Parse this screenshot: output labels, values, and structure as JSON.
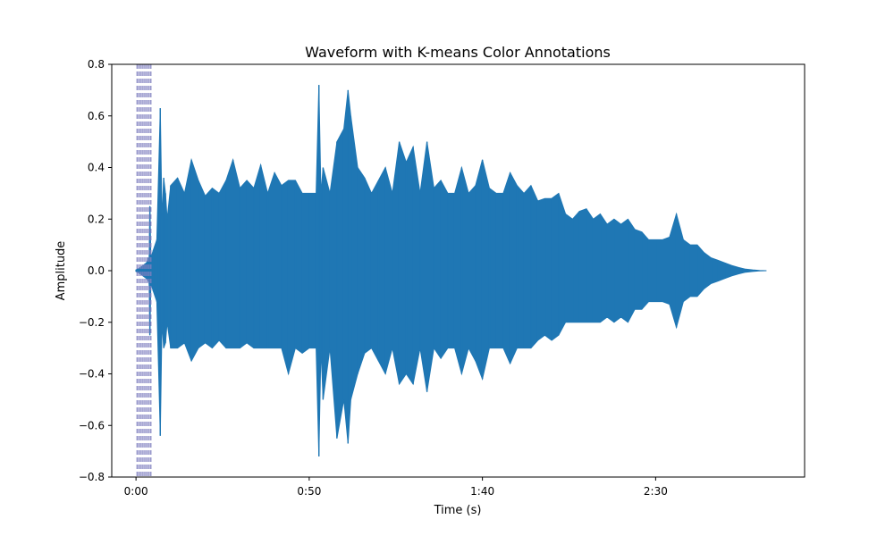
{
  "chart_data": {
    "type": "line",
    "title": "Waveform with K-means Color Annotations",
    "xlabel": "Time (s)",
    "ylabel": "Amplitude",
    "xlim": [
      -7,
      193
    ],
    "ylim": [
      -0.8,
      0.8
    ],
    "xticks": [
      {
        "value": 0,
        "label": "0:00"
      },
      {
        "value": 50,
        "label": "0:50"
      },
      {
        "value": 100,
        "label": "1:40"
      },
      {
        "value": 150,
        "label": "2:30"
      }
    ],
    "yticks": [
      {
        "value": 0.8,
        "label": "0.8"
      },
      {
        "value": 0.6,
        "label": "0.6"
      },
      {
        "value": 0.4,
        "label": "0.4"
      },
      {
        "value": 0.2,
        "label": "0.2"
      },
      {
        "value": 0.0,
        "label": "0.0"
      },
      {
        "value": -0.2,
        "label": "−0.2"
      },
      {
        "value": -0.4,
        "label": "−0.4"
      },
      {
        "value": -0.6,
        "label": "−0.6"
      },
      {
        "value": -0.8,
        "label": "−0.8"
      }
    ],
    "grid": false,
    "series": [
      {
        "color": "#1f77b4",
        "x": [
          0,
          1,
          2,
          3,
          3.6,
          3.8,
          4,
          4.3,
          5,
          6,
          7,
          7.5,
          8.0,
          8.5,
          9,
          10,
          12,
          14,
          16,
          18,
          20,
          22,
          24,
          26,
          28,
          30,
          32,
          34,
          36,
          38,
          40,
          42,
          44,
          46,
          48,
          50,
          52,
          52.8,
          53.4,
          54,
          56,
          58,
          60,
          61.2,
          62,
          64,
          66,
          68,
          70,
          72,
          74,
          76,
          78,
          80,
          82,
          84,
          86,
          88,
          90,
          92,
          94,
          96,
          98,
          100,
          102,
          104,
          106,
          108,
          110,
          112,
          114,
          116,
          118,
          120,
          122,
          124,
          126,
          128,
          130,
          132,
          134,
          136,
          138,
          140,
          142,
          144,
          146,
          148,
          150,
          152,
          154,
          156,
          158,
          160,
          162,
          164,
          166,
          168,
          170,
          172,
          174,
          176,
          178,
          180,
          182
        ],
        "y_max": [
          0.003,
          0.01,
          0.02,
          0.03,
          0.05,
          0.05,
          0.25,
          0.05,
          0.08,
          0.12,
          0.63,
          0.2,
          0.36,
          0.3,
          0.2,
          0.33,
          0.36,
          0.3,
          0.43,
          0.35,
          0.29,
          0.32,
          0.3,
          0.35,
          0.43,
          0.32,
          0.35,
          0.32,
          0.41,
          0.3,
          0.38,
          0.33,
          0.35,
          0.35,
          0.3,
          0.3,
          0.3,
          0.72,
          0.3,
          0.4,
          0.3,
          0.5,
          0.55,
          0.7,
          0.6,
          0.4,
          0.36,
          0.3,
          0.35,
          0.4,
          0.3,
          0.5,
          0.42,
          0.48,
          0.3,
          0.5,
          0.32,
          0.35,
          0.3,
          0.3,
          0.4,
          0.3,
          0.33,
          0.43,
          0.32,
          0.3,
          0.3,
          0.38,
          0.33,
          0.3,
          0.33,
          0.27,
          0.28,
          0.28,
          0.3,
          0.22,
          0.2,
          0.23,
          0.24,
          0.2,
          0.22,
          0.18,
          0.2,
          0.18,
          0.2,
          0.16,
          0.15,
          0.12,
          0.12,
          0.12,
          0.13,
          0.22,
          0.12,
          0.1,
          0.1,
          0.07,
          0.05,
          0.04,
          0.03,
          0.02,
          0.012,
          0.006,
          0.003,
          0.001,
          0.0
        ],
        "y_min": [
          -0.003,
          -0.01,
          -0.02,
          -0.03,
          -0.04,
          -0.05,
          -0.25,
          -0.05,
          -0.08,
          -0.12,
          -0.64,
          -0.2,
          -0.3,
          -0.28,
          -0.2,
          -0.3,
          -0.3,
          -0.28,
          -0.35,
          -0.3,
          -0.28,
          -0.3,
          -0.27,
          -0.3,
          -0.3,
          -0.3,
          -0.28,
          -0.3,
          -0.3,
          -0.3,
          -0.3,
          -0.3,
          -0.4,
          -0.3,
          -0.32,
          -0.3,
          -0.3,
          -0.72,
          -0.3,
          -0.5,
          -0.3,
          -0.65,
          -0.5,
          -0.67,
          -0.5,
          -0.4,
          -0.32,
          -0.3,
          -0.35,
          -0.4,
          -0.3,
          -0.44,
          -0.4,
          -0.44,
          -0.3,
          -0.47,
          -0.3,
          -0.34,
          -0.3,
          -0.3,
          -0.4,
          -0.3,
          -0.35,
          -0.42,
          -0.3,
          -0.3,
          -0.3,
          -0.36,
          -0.3,
          -0.3,
          -0.3,
          -0.27,
          -0.25,
          -0.27,
          -0.25,
          -0.2,
          -0.2,
          -0.2,
          -0.2,
          -0.2,
          -0.2,
          -0.18,
          -0.2,
          -0.18,
          -0.2,
          -0.15,
          -0.15,
          -0.12,
          -0.12,
          -0.12,
          -0.13,
          -0.22,
          -0.12,
          -0.1,
          -0.1,
          -0.07,
          -0.05,
          -0.04,
          -0.03,
          -0.02,
          -0.012,
          -0.006,
          -0.003,
          -0.001,
          0.0
        ]
      }
    ],
    "annotations": {
      "type": "vertical-dashed-lines",
      "color": "#8080c0",
      "x": [
        0.3,
        0.8,
        1.3,
        1.8,
        2.3,
        2.8,
        3.3,
        3.8,
        4.3
      ]
    },
    "spike_peaks": [
      7,
      52.8,
      61.2
    ]
  }
}
